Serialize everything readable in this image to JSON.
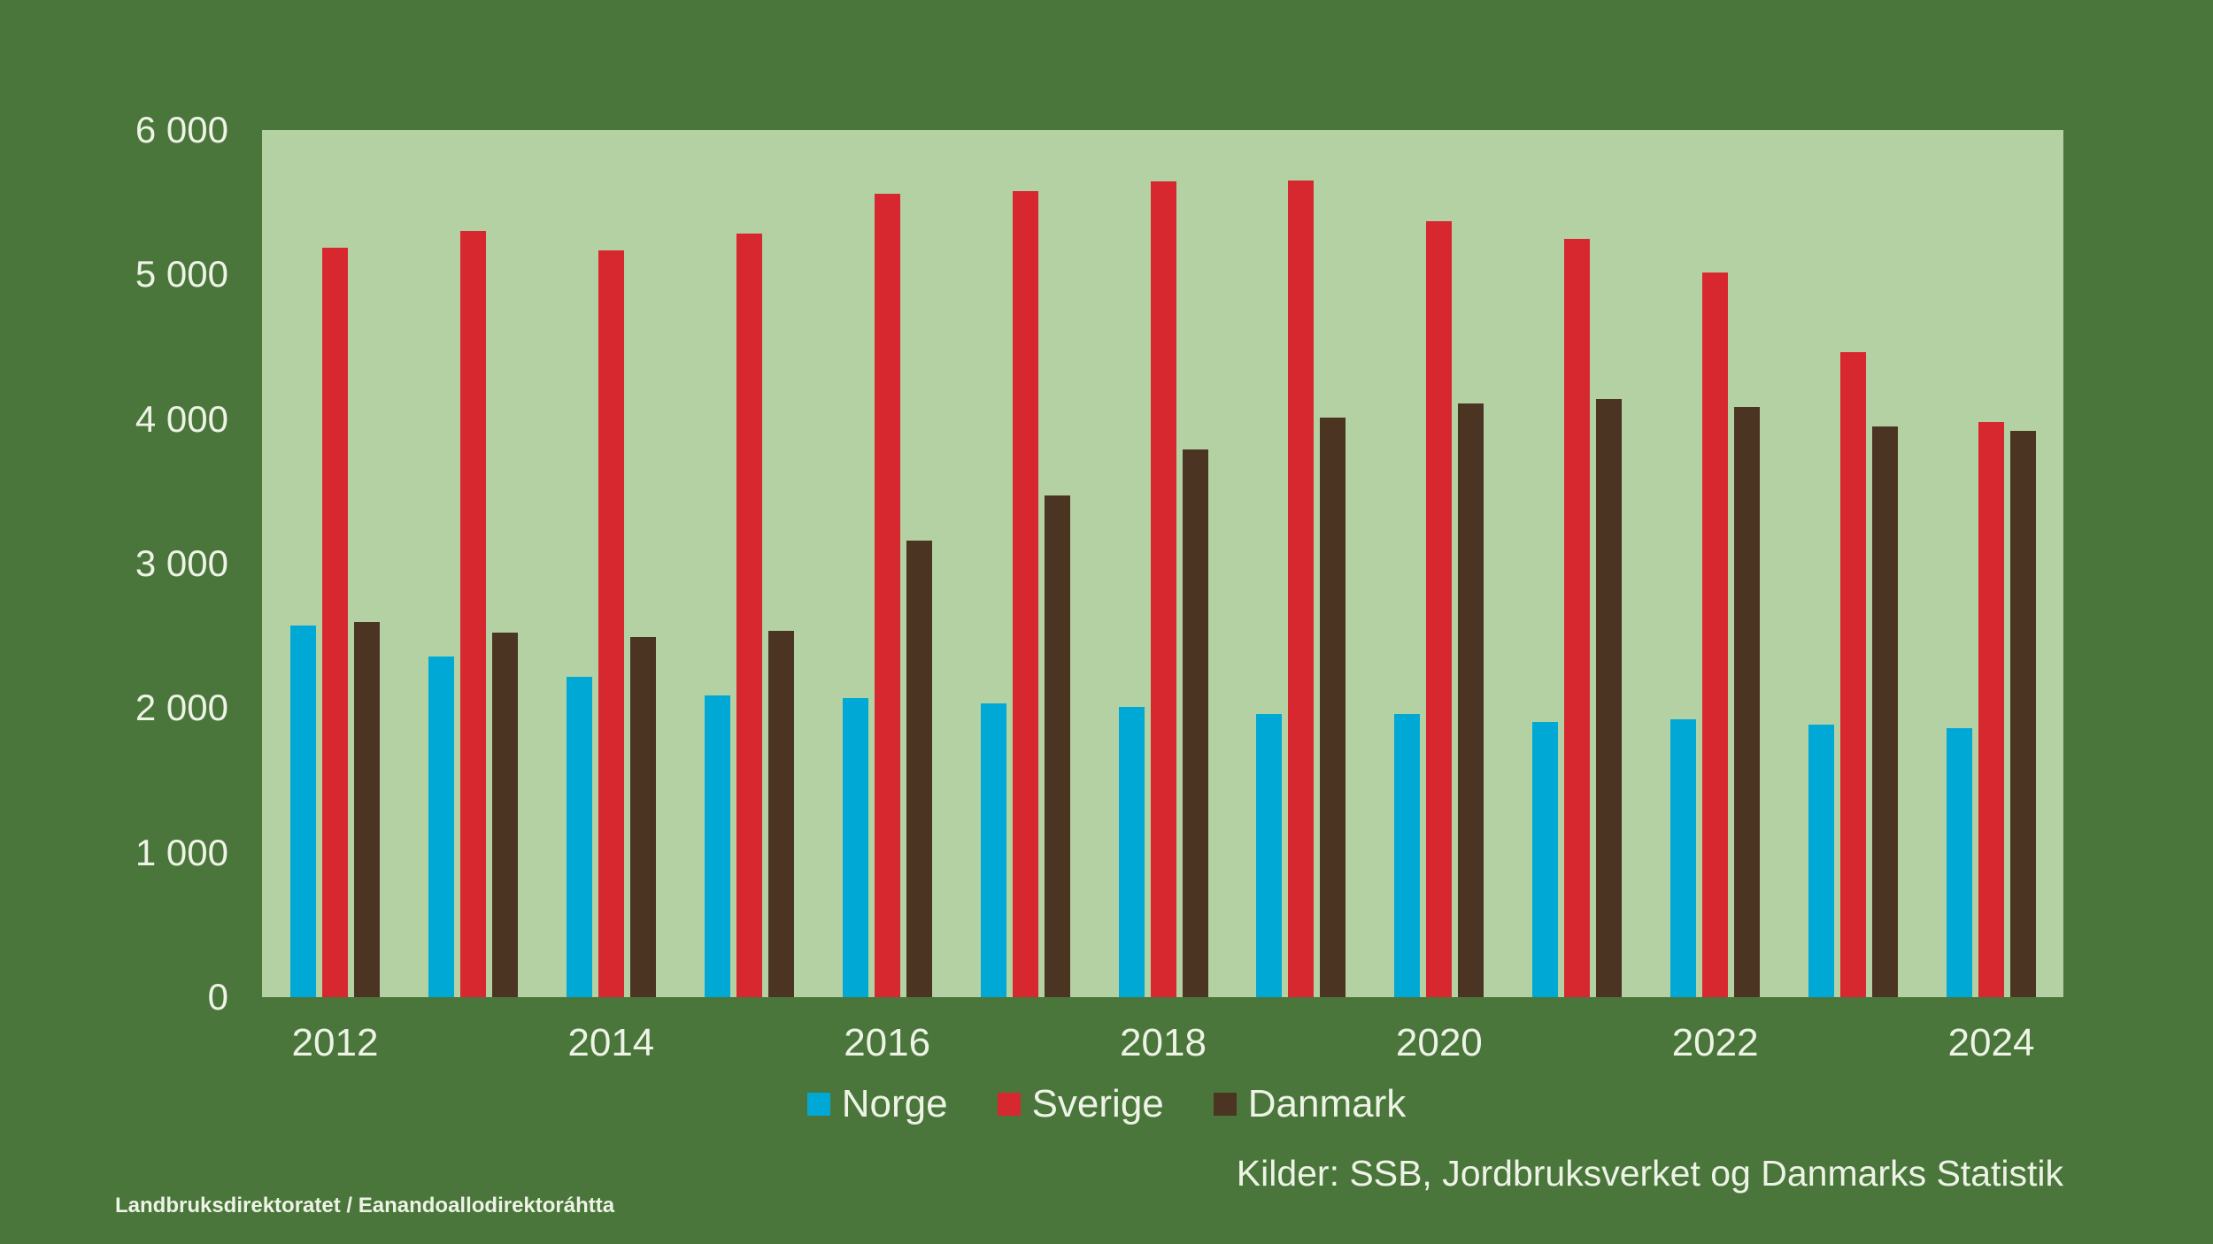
{
  "colors": {
    "background": "#4A763B",
    "plot_background": "#B3D1A3",
    "text": "#EDF3E5"
  },
  "source_note": "Kilder: SSB, Jordbruksverket og Danmarks Statistik",
  "footer": "Landbruksdirektoratet / Eanandoallodirektoráhtta",
  "chart_data": {
    "type": "bar",
    "categories": [
      2012,
      2013,
      2014,
      2015,
      2016,
      2017,
      2018,
      2019,
      2020,
      2021,
      2022,
      2023,
      2024
    ],
    "series": [
      {
        "name": "Norge",
        "color": "#00A8D6",
        "values": [
          2570,
          2360,
          2215,
          2090,
          2070,
          2030,
          2010,
          1960,
          1960,
          1905,
          1920,
          1885,
          1860
        ]
      },
      {
        "name": "Sverige",
        "color": "#D7282F",
        "values": [
          5185,
          5305,
          5170,
          5285,
          5560,
          5580,
          5645,
          5650,
          5370,
          5245,
          5015,
          4465,
          3980
        ]
      },
      {
        "name": "Danmark",
        "color": "#4B3522",
        "values": [
          2595,
          2520,
          2490,
          2535,
          3160,
          3470,
          3790,
          4010,
          4110,
          4140,
          4085,
          3950,
          3920
        ]
      }
    ],
    "title": "",
    "xlabel": "",
    "ylabel": "",
    "ylim": [
      0,
      6000
    ],
    "y_ticks": [
      0,
      1000,
      2000,
      3000,
      4000,
      5000,
      6000
    ],
    "y_tick_labels": [
      "0",
      "1 000",
      "2 000",
      "3 000",
      "4 000",
      "5 000",
      "6 000"
    ],
    "x_tick_labels": [
      "2012",
      "2014",
      "2016",
      "2018",
      "2020",
      "2022",
      "2024"
    ],
    "x_tick_every": 2,
    "grid": false,
    "legend_position": "bottom"
  }
}
